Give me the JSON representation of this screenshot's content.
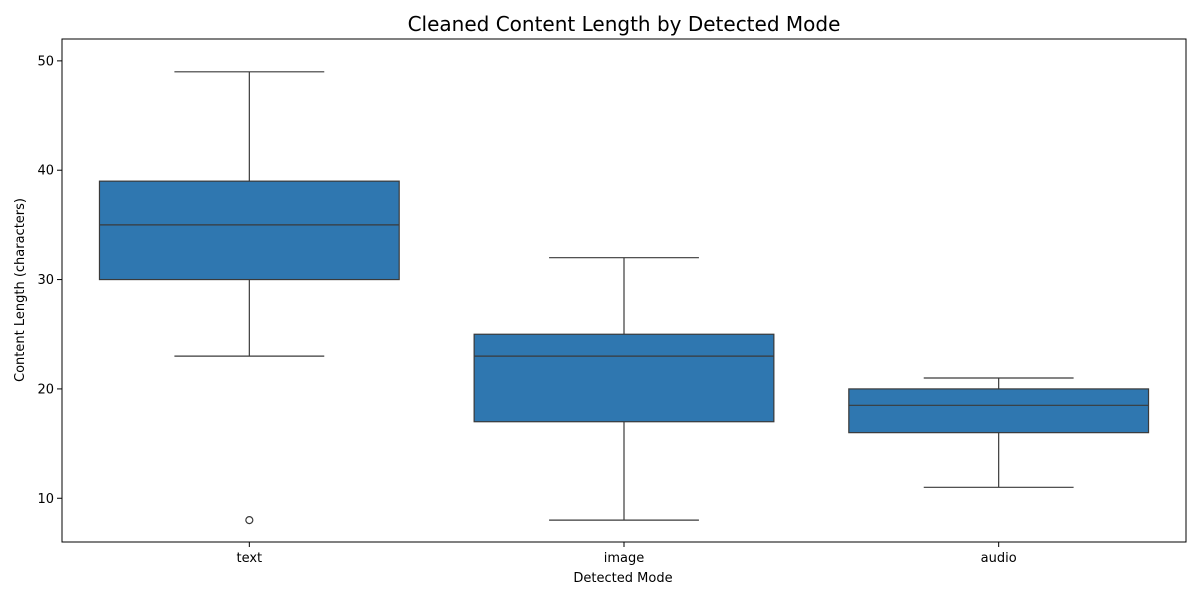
{
  "chart_data": {
    "type": "box",
    "title": "Cleaned Content Length by Detected Mode",
    "xlabel": "Detected Mode",
    "ylabel": "Content Length (characters)",
    "ylim": [
      6,
      52
    ],
    "yticks": [
      10,
      20,
      30,
      40,
      50
    ],
    "grid": false,
    "legend": "none",
    "box_color": "#2f77b0",
    "edge_color": "#3a3a3a",
    "categories": [
      "text",
      "image",
      "audio"
    ],
    "boxes": [
      {
        "category": "text",
        "whisker_low": 23,
        "q1": 30,
        "median": 35,
        "q3": 39,
        "whisker_high": 49,
        "outliers": [
          8
        ]
      },
      {
        "category": "image",
        "whisker_low": 8,
        "q1": 17,
        "median": 23,
        "q3": 25,
        "whisker_high": 32,
        "outliers": []
      },
      {
        "category": "audio",
        "whisker_low": 11,
        "q1": 16,
        "median": 18.5,
        "q3": 20,
        "whisker_high": 21,
        "outliers": []
      }
    ]
  }
}
